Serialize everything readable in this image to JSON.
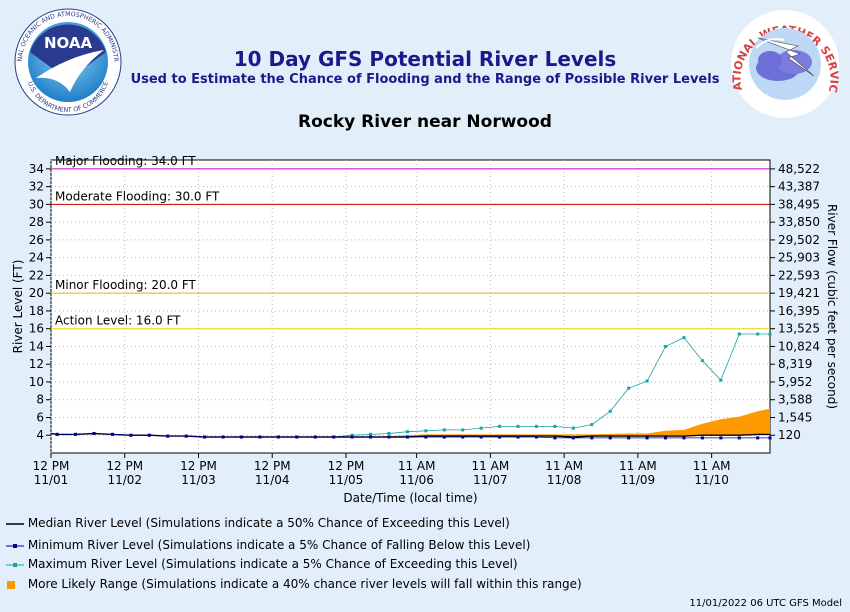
{
  "header": {
    "title": "10 Day GFS Potential River Levels",
    "subtitle": "Used to Estimate the Chance of Flooding and the Range of Possible River Levels",
    "location": "Rocky River near Norwood",
    "noaa_ring_text": "NATIONAL OCEANIC AND ATMOSPHERIC ADMINISTRATION",
    "noaa_ring_text_bottom": "U.S. DEPARTMENT OF COMMERCE",
    "noaa_logo_text": "NOAA",
    "nws_ring_text": "NATIONAL WEATHER SERVICE"
  },
  "colors": {
    "median": "#000000",
    "minimum": "#00008b",
    "maximum": "#1aa3a3",
    "range": "#ff9900",
    "major": "#cc00cc",
    "moderate": "#cc0000",
    "minor": "#e6b800",
    "action": "#e6d800"
  },
  "legend": {
    "median": "Median River Level (Simulations indicate a 50% Chance of Exceeding this Level)",
    "minimum": "Minimum River Level (Simulations indicate a 5% Chance of Falling Below this Level)",
    "maximum": "Maximum River Level (Simulations indicate a 5% Chance of Exceeding this Level)",
    "range": "More Likely Range (Simulations indicate a 40% chance river levels will fall within this range)"
  },
  "footer": "11/01/2022 06 UTC GFS Model",
  "chart_data": {
    "type": "line",
    "xlabel": "Date/Time (local time)",
    "ylabel": "River Level (FT)",
    "y2label": "River Flow (cubic feet per second)",
    "ylim": [
      2,
      35
    ],
    "xlim": [
      0,
      234
    ],
    "x_ticks": [
      {
        "x": 0,
        "time": "12 PM",
        "date": "11/01"
      },
      {
        "x": 24,
        "time": "12 PM",
        "date": "11/02"
      },
      {
        "x": 48,
        "time": "12 PM",
        "date": "11/03"
      },
      {
        "x": 72,
        "time": "12 PM",
        "date": "11/04"
      },
      {
        "x": 96,
        "time": "12 PM",
        "date": "11/05"
      },
      {
        "x": 119,
        "time": "11 AM",
        "date": "11/06"
      },
      {
        "x": 143,
        "time": "11 AM",
        "date": "11/07"
      },
      {
        "x": 167,
        "time": "11 AM",
        "date": "11/08"
      },
      {
        "x": 191,
        "time": "11 AM",
        "date": "11/09"
      },
      {
        "x": 215,
        "time": "11 AM",
        "date": "11/10"
      }
    ],
    "y_ticks": [
      4,
      6,
      8,
      10,
      12,
      14,
      16,
      18,
      20,
      22,
      24,
      26,
      28,
      30,
      32,
      34
    ],
    "y2_ticks": [
      {
        "level": 4,
        "flow": "120"
      },
      {
        "level": 6,
        "flow": "1,545"
      },
      {
        "level": 8,
        "flow": "3,588"
      },
      {
        "level": 10,
        "flow": "5,952"
      },
      {
        "level": 12,
        "flow": "8,319"
      },
      {
        "level": 14,
        "flow": "10,824"
      },
      {
        "level": 16,
        "flow": "13,525"
      },
      {
        "level": 18,
        "flow": "16,395"
      },
      {
        "level": 20,
        "flow": "19,421"
      },
      {
        "level": 22,
        "flow": "22,593"
      },
      {
        "level": 24,
        "flow": "25,903"
      },
      {
        "level": 26,
        "flow": "29,502"
      },
      {
        "level": 28,
        "flow": "33,850"
      },
      {
        "level": 30,
        "flow": "38,495"
      },
      {
        "level": 32,
        "flow": "43,387"
      },
      {
        "level": 34,
        "flow": "48,522"
      }
    ],
    "thresholds": [
      {
        "key": "major",
        "label": "Major Flooding: 34.0 FT",
        "value": 34
      },
      {
        "key": "moderate",
        "label": "Moderate Flooding: 30.0 FT",
        "value": 30
      },
      {
        "key": "minor",
        "label": "Minor Flooding: 20.0 FT",
        "value": 20
      },
      {
        "key": "action",
        "label": "Action Level: 16.0 FT",
        "value": 16
      }
    ],
    "x": [
      -4,
      2,
      8,
      14,
      20,
      26,
      32,
      38,
      44,
      50,
      56,
      62,
      68,
      74,
      80,
      86,
      92,
      98,
      104,
      110,
      116,
      122,
      128,
      134,
      140,
      146,
      152,
      158,
      164,
      170,
      176,
      182,
      188,
      194,
      200,
      206,
      212,
      218,
      224,
      230,
      234
    ],
    "series": [
      {
        "name": "Maximum River Level",
        "key": "maximum",
        "values": [
          4.2,
          4.1,
          4.1,
          4.2,
          4.1,
          4.0,
          4.0,
          3.9,
          3.9,
          3.8,
          3.8,
          3.8,
          3.8,
          3.8,
          3.8,
          3.8,
          3.8,
          4.0,
          4.1,
          4.2,
          4.4,
          4.5,
          4.6,
          4.6,
          4.8,
          5.0,
          5.0,
          5.0,
          5.0,
          4.8,
          5.2,
          6.7,
          9.3,
          10.1,
          14.0,
          15.0,
          12.4,
          10.2,
          15.4,
          15.4,
          15.4
        ]
      },
      {
        "name": "Median River Level",
        "key": "median",
        "values": [
          4.2,
          4.1,
          4.1,
          4.2,
          4.1,
          4.0,
          4.0,
          3.9,
          3.9,
          3.8,
          3.8,
          3.8,
          3.8,
          3.8,
          3.8,
          3.8,
          3.8,
          3.8,
          3.8,
          3.8,
          3.8,
          3.9,
          3.9,
          3.9,
          3.9,
          3.9,
          3.9,
          3.9,
          3.9,
          3.8,
          3.9,
          3.9,
          3.9,
          3.9,
          3.9,
          3.9,
          4.0,
          4.0,
          4.0,
          4.1,
          4.1
        ]
      },
      {
        "name": "Minimum River Level",
        "key": "minimum",
        "values": [
          4.2,
          4.1,
          4.1,
          4.2,
          4.1,
          4.0,
          4.0,
          3.9,
          3.9,
          3.8,
          3.8,
          3.8,
          3.8,
          3.8,
          3.8,
          3.8,
          3.8,
          3.8,
          3.8,
          3.8,
          3.8,
          3.8,
          3.8,
          3.8,
          3.8,
          3.8,
          3.8,
          3.8,
          3.7,
          3.7,
          3.7,
          3.7,
          3.7,
          3.7,
          3.7,
          3.7,
          3.7,
          3.7,
          3.7,
          3.7,
          3.7
        ]
      }
    ],
    "range": {
      "name": "More Likely Range",
      "x": [
        104,
        116,
        122,
        140,
        158,
        176,
        188,
        194,
        200,
        206,
        212,
        218,
        224,
        230,
        234
      ],
      "low": [
        3.8,
        3.8,
        3.9,
        3.9,
        3.9,
        3.9,
        3.9,
        3.9,
        3.9,
        4.0,
        4.0,
        4.0,
        4.0,
        4.1,
        4.1
      ],
      "high": [
        3.8,
        4.0,
        4.1,
        4.1,
        4.1,
        4.1,
        4.2,
        4.2,
        4.5,
        4.6,
        5.3,
        5.8,
        6.1,
        6.7,
        7.0
      ]
    }
  }
}
